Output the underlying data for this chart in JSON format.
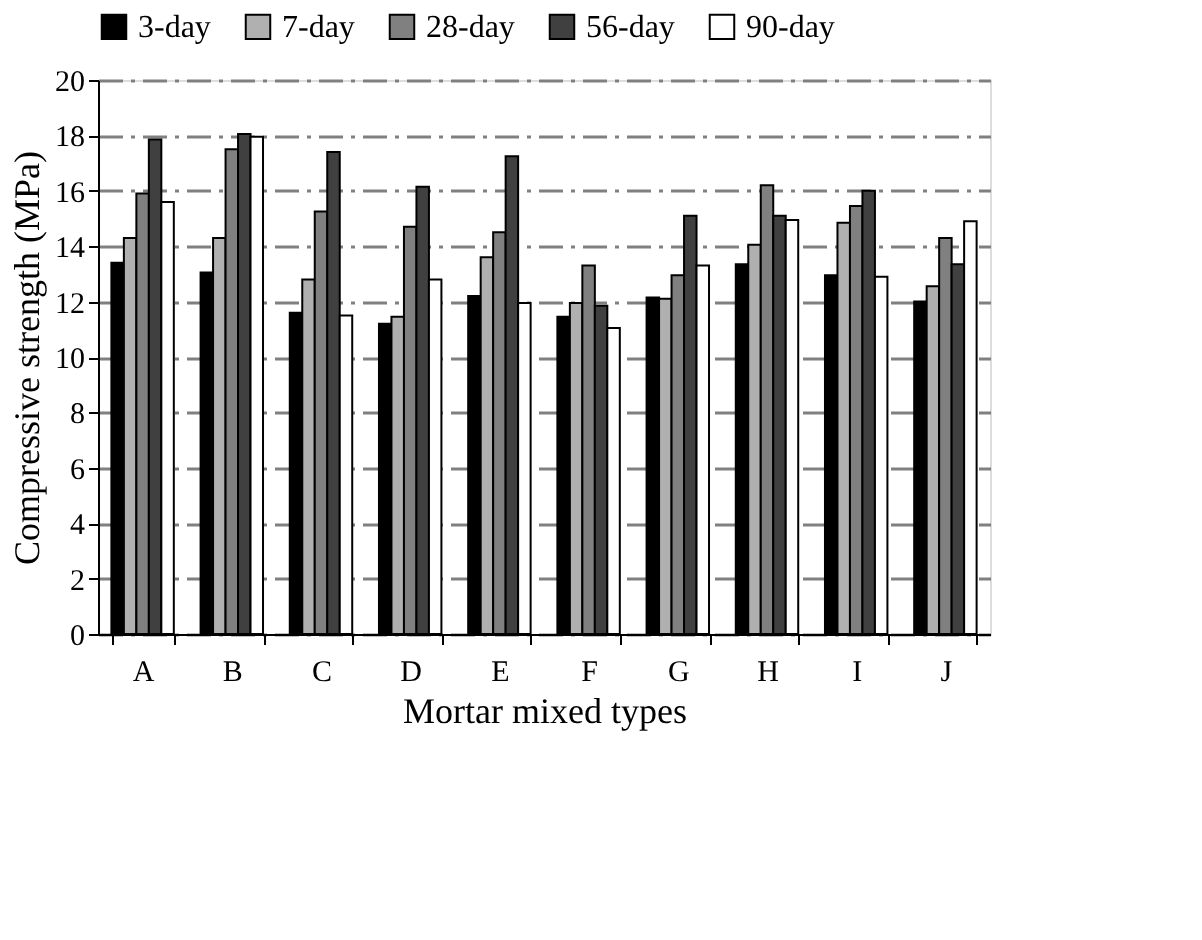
{
  "chart_data": {
    "type": "bar",
    "xlabel": "Mortar mixed types",
    "ylabel": "Compressive strength (MPa)",
    "categories": [
      "A",
      "B",
      "C",
      "D",
      "E",
      "F",
      "G",
      "H",
      "I",
      "J"
    ],
    "series": [
      {
        "name": "3-day",
        "color": "#000000",
        "values": [
          13.4,
          13.05,
          11.6,
          11.2,
          12.2,
          11.45,
          12.15,
          13.35,
          12.95,
          12.0
        ]
      },
      {
        "name": "7-day",
        "color": "#b0b0b0",
        "values": [
          14.3,
          14.3,
          12.8,
          11.45,
          13.6,
          11.95,
          12.1,
          14.05,
          14.85,
          12.55
        ]
      },
      {
        "name": "28-day",
        "color": "#808080",
        "values": [
          15.9,
          17.5,
          15.25,
          14.7,
          14.5,
          13.3,
          12.95,
          16.2,
          15.45,
          14.3
        ]
      },
      {
        "name": "56-day",
        "color": "#404040",
        "values": [
          17.85,
          18.05,
          17.4,
          16.15,
          17.25,
          11.85,
          15.1,
          15.1,
          16.0,
          13.35
        ]
      },
      {
        "name": "90-day",
        "color": "#ffffff",
        "values": [
          15.6,
          17.95,
          11.5,
          12.8,
          11.95,
          11.05,
          13.3,
          14.95,
          12.9,
          14.9
        ]
      }
    ],
    "ylim": [
      0,
      20
    ],
    "yticks": [
      0,
      2,
      4,
      6,
      8,
      10,
      12,
      14,
      16,
      18,
      20
    ],
    "grid": "y",
    "legend": "top"
  }
}
